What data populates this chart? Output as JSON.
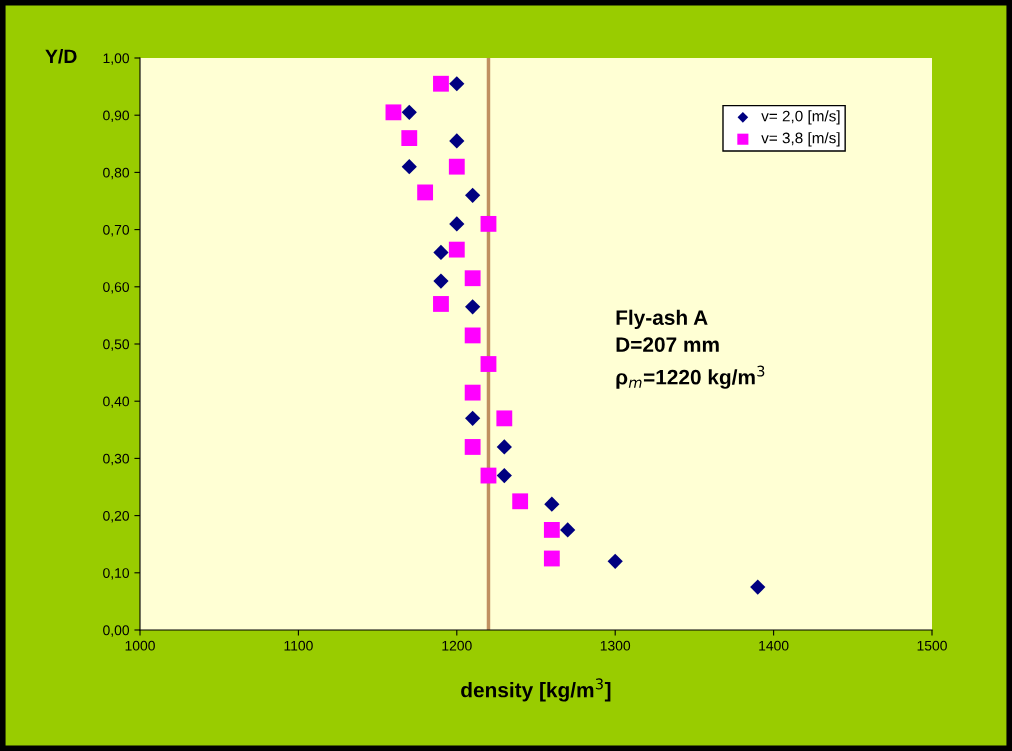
{
  "chart_data": {
    "type": "scatter",
    "xlabel": "density [kg/m$^{3}$]",
    "ylabel": "Y/D",
    "xlim": [
      1000,
      1500
    ],
    "xticks": [
      1000,
      1100,
      1200,
      1300,
      1400,
      1500
    ],
    "ylim": [
      0,
      1
    ],
    "yticks": [
      {
        "value": 0,
        "label": "0,00"
      },
      {
        "value": 0.1,
        "label": "0,10"
      },
      {
        "value": 0.2,
        "label": "0,20"
      },
      {
        "value": 0.3,
        "label": "0,30"
      },
      {
        "value": 0.4,
        "label": "0,40"
      },
      {
        "value": 0.5,
        "label": "0,50"
      },
      {
        "value": 0.6,
        "label": "0,60"
      },
      {
        "value": 0.7,
        "label": "0,70"
      },
      {
        "value": 0.8,
        "label": "0,80"
      },
      {
        "value": 0.9,
        "label": "0,90"
      },
      {
        "value": 1,
        "label": "1,00"
      }
    ],
    "grid": false,
    "legend": "top right",
    "series": [
      {
        "name": "v= 2,0 [m/s]",
        "color": "#000080",
        "marker": "diamond",
        "x": [
          1200,
          1170,
          1200,
          1170,
          1210,
          1200,
          1190,
          1190,
          1210,
          1210,
          1230,
          1230,
          1260,
          1270,
          1300,
          1390
        ],
        "values": [
          0.955,
          0.905,
          0.855,
          0.81,
          0.76,
          0.71,
          0.66,
          0.61,
          0.565,
          0.37,
          0.32,
          0.27,
          0.22,
          0.175,
          0.12,
          0.075
        ]
      },
      {
        "name": "v= 3,8 [m/s]",
        "color": "#ff00ff",
        "marker": "square",
        "x": [
          1190,
          1160,
          1170,
          1200,
          1180,
          1220,
          1200,
          1210,
          1190,
          1210,
          1220,
          1210,
          1230,
          1210,
          1220,
          1240,
          1260,
          1260
        ],
        "values": [
          0.955,
          0.905,
          0.86,
          0.81,
          0.765,
          0.71,
          0.665,
          0.615,
          0.57,
          0.515,
          0.465,
          0.415,
          0.37,
          0.32,
          0.27,
          0.225,
          0.175,
          0.125
        ]
      }
    ],
    "ref_lines": [
      {
        "axis": "x",
        "value": 1220,
        "color": "#c09060"
      }
    ],
    "annotations": [
      "Fly-ash A\nD=207 mm\nρ$_{m}$=1220 kg/m$^{3}$"
    ]
  }
}
